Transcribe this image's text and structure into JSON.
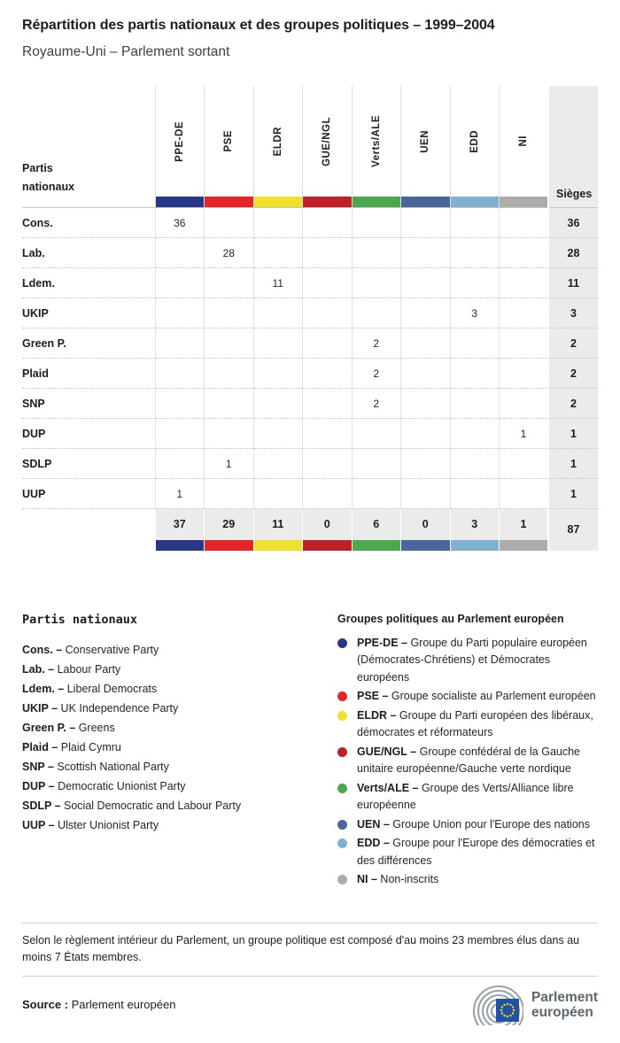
{
  "header": {
    "title": "Répartition des partis nationaux et des groupes politiques – 1999–2004",
    "subtitle": "Royaume-Uni – Parlement sortant"
  },
  "groups": [
    {
      "abbr": "PPE-DE",
      "color": "#293884",
      "desc": "Groupe du Parti populaire européen (Démocrates-Chrétiens) et Démocrates européens"
    },
    {
      "abbr": "PSE",
      "color": "#e2262a",
      "desc": "Groupe socialiste au Parlement européen"
    },
    {
      "abbr": "ELDR",
      "color": "#efe02e",
      "desc": "Groupe du Parti européen des libéraux, démocrates et réformateurs"
    },
    {
      "abbr": "GUE/NGL",
      "color": "#bf2126",
      "desc": "Groupe confédéral de la Gauche unitaire européenne/Gauche verte nordique"
    },
    {
      "abbr": "Verts/ALE",
      "color": "#4ba84f",
      "desc": "Groupe des Verts/Alliance libre européenne"
    },
    {
      "abbr": "UEN",
      "color": "#4b669d",
      "desc": "Groupe Union pour l'Europe des nations"
    },
    {
      "abbr": "EDD",
      "color": "#81b1d2",
      "desc": "Groupe pour l'Europe des démocraties et des différences"
    },
    {
      "abbr": "NI",
      "color": "#acacaa",
      "desc": "Non-inscrits"
    }
  ],
  "chart_data": {
    "type": "table",
    "title": "Répartition des partis nationaux et des groupes politiques – 1999–2004",
    "subtitle": "Royaume-Uni – Parlement sortant",
    "row_header": "Partis nationaux",
    "seats_header": "Sièges",
    "columns": [
      "PPE-DE",
      "PSE",
      "ELDR",
      "GUE/NGL",
      "Verts/ALE",
      "UEN",
      "EDD",
      "NI"
    ],
    "rows": [
      {
        "party": "Cons.",
        "values": [
          36,
          null,
          null,
          null,
          null,
          null,
          null,
          null
        ],
        "seats": 36
      },
      {
        "party": "Lab.",
        "values": [
          null,
          28,
          null,
          null,
          null,
          null,
          null,
          null
        ],
        "seats": 28
      },
      {
        "party": "Ldem.",
        "values": [
          null,
          null,
          11,
          null,
          null,
          null,
          null,
          null
        ],
        "seats": 11
      },
      {
        "party": "UKIP",
        "values": [
          null,
          null,
          null,
          null,
          null,
          null,
          3,
          null
        ],
        "seats": 3
      },
      {
        "party": "Green P.",
        "values": [
          null,
          null,
          null,
          null,
          2,
          null,
          null,
          null
        ],
        "seats": 2
      },
      {
        "party": "Plaid",
        "values": [
          null,
          null,
          null,
          null,
          2,
          null,
          null,
          null
        ],
        "seats": 2
      },
      {
        "party": "SNP",
        "values": [
          null,
          null,
          null,
          null,
          2,
          null,
          null,
          null
        ],
        "seats": 2
      },
      {
        "party": "DUP",
        "values": [
          null,
          null,
          null,
          null,
          null,
          null,
          null,
          1
        ],
        "seats": 1
      },
      {
        "party": "SDLP",
        "values": [
          null,
          1,
          null,
          null,
          null,
          null,
          null,
          null
        ],
        "seats": 1
      },
      {
        "party": "UUP",
        "values": [
          1,
          null,
          null,
          null,
          null,
          null,
          null,
          null
        ],
        "seats": 1
      }
    ],
    "totals": {
      "values": [
        37,
        29,
        11,
        0,
        6,
        0,
        3,
        1
      ],
      "seats": 87
    }
  },
  "legend_parties": {
    "heading": "Partis nationaux",
    "separator": "–",
    "items": [
      {
        "abbr": "Cons.",
        "name": "Conservative Party"
      },
      {
        "abbr": "Lab.",
        "name": "Labour Party"
      },
      {
        "abbr": "Ldem.",
        "name": "Liberal Democrats"
      },
      {
        "abbr": "UKIP",
        "name": "UK Independence Party"
      },
      {
        "abbr": "Green P.",
        "name": "Greens"
      },
      {
        "abbr": "Plaid",
        "name": "Plaid Cymru"
      },
      {
        "abbr": "SNP",
        "name": "Scottish National Party"
      },
      {
        "abbr": "DUP",
        "name": "Democratic Unionist Party"
      },
      {
        "abbr": "SDLP",
        "name": "Social Democratic and Labour Party"
      },
      {
        "abbr": "UUP",
        "name": "Ulster Unionist Party"
      }
    ]
  },
  "legend_groups": {
    "heading": "Groupes politiques au Parlement européen",
    "separator": "–"
  },
  "footnote": "Selon le règlement intérieur du Parlement, un groupe politique est composé d'au moins 23 membres élus dans au moins 7 États membres.",
  "source": {
    "label": "Source :",
    "value": "Parlement européen"
  },
  "logo": {
    "line1": "Parlement",
    "line2": "européen"
  },
  "logo_colors": {
    "arcs": "#99a1a9",
    "flag": "#2253a2",
    "stars": "#ffd617"
  }
}
